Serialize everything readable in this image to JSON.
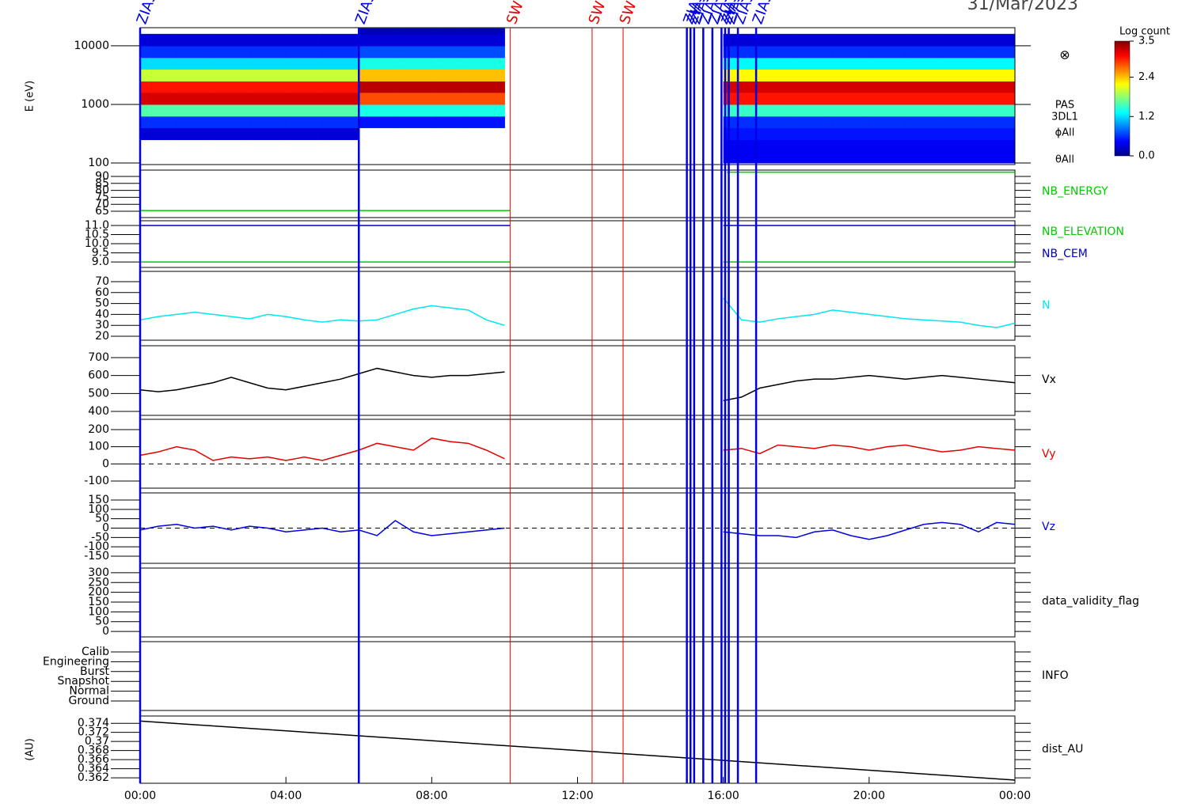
{
  "date": "31/Mar/2023",
  "events": [
    {
      "time": 0,
      "label": "ZIAS",
      "color": "#0000e0"
    },
    {
      "time": 6.0,
      "label": "ZIAS",
      "color": "#0000e0"
    },
    {
      "time": 10.15,
      "label": "SW",
      "color": "#e00000"
    },
    {
      "time": 12.4,
      "label": "SW",
      "color": "#e00000"
    },
    {
      "time": 13.25,
      "label": "SW",
      "color": "#e00000"
    },
    {
      "time": 15.0,
      "label": "ZIAS",
      "color": "#0000e0"
    },
    {
      "time": 15.1,
      "label": "ZIAS",
      "color": "#0000e0"
    },
    {
      "time": 15.2,
      "label": "ZIAS",
      "color": "#0000e0"
    },
    {
      "time": 15.45,
      "label": "ZIAS",
      "color": "#0000e0"
    },
    {
      "time": 15.7,
      "label": "ZIAS",
      "color": "#0000e0"
    },
    {
      "time": 15.95,
      "label": "ZIAS",
      "color": "#0000e0"
    },
    {
      "time": 16.05,
      "label": "ZIAS",
      "color": "#0000e0"
    },
    {
      "time": 16.15,
      "label": "ZIAS",
      "color": "#0000e0"
    },
    {
      "time": 16.4,
      "label": "ZIAS",
      "color": "#0000e0"
    },
    {
      "time": 16.9,
      "label": "ZIAS",
      "color": "#0000e0"
    }
  ],
  "chart_data": [
    {
      "type": "heatmap",
      "ylabel": "E (eV)",
      "log_y": true,
      "ylim": [
        94,
        20400
      ],
      "yticks": [
        100,
        1000,
        10000
      ],
      "xlim": [
        0,
        24
      ],
      "x_edges": [
        0,
        1,
        2,
        3,
        4,
        5,
        6,
        7,
        8,
        9,
        10,
        11,
        12,
        13,
        14,
        15,
        16,
        17,
        18,
        19,
        20,
        21,
        22,
        23,
        24
      ],
      "y_edges": [
        100,
        160,
        250,
        400,
        630,
        1000,
        1600,
        2500,
        4000,
        6300,
        10000,
        16000,
        20000
      ],
      "z": [
        [
          null,
          null,
          null,
          null,
          null,
          null,
          null,
          null,
          null,
          null,
          null,
          null,
          null,
          null,
          null,
          null,
          0.4,
          0.4,
          0.4,
          0.4,
          0.4,
          0.4,
          0.4,
          0.4
        ],
        [
          null,
          null,
          null,
          null,
          null,
          null,
          null,
          null,
          null,
          null,
          null,
          null,
          null,
          null,
          null,
          null,
          0.4,
          0.4,
          0.4,
          0.4,
          0.4,
          0.4,
          0.4,
          0.4
        ],
        [
          0.3,
          0.3,
          0.3,
          0.3,
          0.3,
          0.3,
          null,
          null,
          null,
          null,
          null,
          null,
          null,
          null,
          null,
          null,
          0.5,
          0.5,
          0.5,
          0.5,
          0.5,
          0.5,
          0.5,
          0.5
        ],
        [
          0.6,
          0.6,
          0.6,
          0.6,
          0.6,
          0.6,
          0.5,
          0.5,
          0.5,
          0.5,
          null,
          null,
          null,
          null,
          null,
          null,
          0.6,
          0.6,
          0.6,
          0.6,
          0.6,
          0.6,
          0.6,
          0.6
        ],
        [
          1.6,
          1.6,
          1.6,
          1.6,
          1.6,
          1.6,
          1.4,
          1.4,
          1.4,
          1.4,
          null,
          null,
          null,
          null,
          null,
          null,
          1.5,
          1.5,
          1.5,
          1.5,
          1.5,
          1.5,
          1.5,
          1.5
        ],
        [
          3.2,
          3.2,
          3.2,
          3.2,
          3.2,
          3.2,
          2.8,
          2.8,
          2.8,
          2.8,
          null,
          null,
          null,
          null,
          null,
          null,
          3.0,
          3.0,
          3.0,
          3.0,
          3.0,
          3.0,
          3.0,
          3.0
        ],
        [
          3.0,
          3.0,
          3.0,
          3.0,
          3.0,
          3.0,
          3.3,
          3.3,
          3.3,
          3.3,
          null,
          null,
          null,
          null,
          null,
          null,
          3.2,
          3.2,
          3.2,
          3.2,
          3.2,
          3.2,
          3.2,
          3.2
        ],
        [
          2.0,
          2.0,
          2.0,
          2.0,
          2.0,
          2.0,
          2.4,
          2.4,
          2.4,
          2.4,
          null,
          null,
          null,
          null,
          null,
          null,
          2.2,
          2.2,
          2.2,
          2.2,
          2.2,
          2.2,
          2.2,
          2.2
        ],
        [
          1.2,
          1.2,
          1.2,
          1.2,
          1.2,
          1.2,
          1.4,
          1.4,
          1.4,
          1.4,
          null,
          null,
          null,
          null,
          null,
          null,
          1.3,
          1.3,
          1.3,
          1.3,
          1.3,
          1.3,
          1.3,
          1.3
        ],
        [
          0.6,
          0.6,
          0.6,
          0.6,
          0.6,
          0.6,
          0.7,
          0.7,
          0.7,
          0.7,
          null,
          null,
          null,
          null,
          null,
          null,
          0.6,
          0.6,
          0.6,
          0.6,
          0.6,
          0.6,
          0.6,
          0.6
        ],
        [
          0.3,
          0.3,
          0.3,
          0.3,
          0.3,
          0.3,
          0.3,
          0.3,
          0.3,
          0.3,
          null,
          null,
          null,
          null,
          null,
          null,
          0.3,
          0.3,
          0.3,
          0.3,
          0.3,
          0.3,
          0.3,
          0.3
        ],
        [
          null,
          null,
          null,
          null,
          null,
          null,
          0.2,
          0.2,
          0.2,
          0.2,
          null,
          null,
          null,
          null,
          null,
          null,
          null,
          null,
          null,
          null,
          null,
          null,
          null,
          null
        ]
      ],
      "clim": [
        0,
        3.5
      ],
      "colorbar_title": "Log count",
      "cticks": [
        {
          "value": 0,
          "label": "0.0"
        },
        1.2,
        2.4,
        3.5
      ],
      "symbol": "⊗",
      "side_labels": [
        "PAS",
        "3DL1",
        "ϕAll",
        "θAll"
      ]
    },
    {
      "type": "line",
      "ylim": [
        60.5,
        94.5
      ],
      "yticks": [
        90,
        85,
        80,
        75,
        70,
        65
      ],
      "xlim": [
        0,
        24
      ],
      "x": [
        0,
        10.15,
        13,
        16.1,
        24
      ],
      "series": [
        {
          "name": "NB_ENERGY",
          "color": "#00cc00",
          "values": [
            65.5,
            65.5,
            null,
            93,
            93
          ]
        }
      ]
    },
    {
      "type": "line",
      "ylim": [
        8.7,
        11.26
      ],
      "yticks": [
        {
          "value": 11,
          "label": "11.0"
        },
        10.5,
        {
          "value": 10,
          "label": "10.0"
        },
        9.5,
        {
          "value": 9,
          "label": "9.0"
        }
      ],
      "xlim": [
        0,
        24
      ],
      "x": [
        0,
        10.15,
        13,
        16.0,
        24
      ],
      "series": [
        {
          "name": "NB_ELEVATION",
          "color": "#00cc00",
          "values": [
            9,
            9,
            null,
            9,
            9
          ]
        },
        {
          "name": "NB_CEM",
          "color": "#0000c0",
          "values": [
            11,
            11,
            null,
            11,
            11
          ]
        }
      ]
    },
    {
      "type": "line",
      "ylim": [
        16.4,
        79.4
      ],
      "yticks": [
        20,
        30,
        40,
        50,
        60,
        70
      ],
      "xlim": [
        0,
        24
      ],
      "x": [
        0,
        0.5,
        1,
        1.5,
        2,
        2.5,
        3,
        3.5,
        4,
        4.5,
        5,
        5.5,
        6,
        6.5,
        7,
        7.5,
        8,
        8.5,
        9,
        9.5,
        10,
        13,
        16,
        16.5,
        17,
        17.5,
        18,
        18.5,
        19,
        19.5,
        20,
        20.5,
        21,
        21.5,
        22,
        22.5,
        23,
        23.5,
        24
      ],
      "series": [
        {
          "name": "N",
          "color": "#00e5ee",
          "values": [
            35,
            38,
            40,
            42,
            40,
            38,
            36,
            40,
            38,
            35,
            33,
            35,
            34,
            35,
            40,
            45,
            48,
            46,
            44,
            35,
            30,
            null,
            55,
            35,
            33,
            36,
            38,
            40,
            44,
            42,
            40,
            38,
            36,
            35,
            34,
            33,
            30,
            28,
            32
          ]
        }
      ]
    },
    {
      "type": "line",
      "ylim": [
        378,
        766
      ],
      "yticks": [
        400,
        500,
        600,
        700
      ],
      "xlim": [
        0,
        24
      ],
      "x": [
        0,
        0.5,
        1,
        1.5,
        2,
        2.5,
        3,
        3.5,
        4,
        4.5,
        5,
        5.5,
        6,
        6.5,
        7,
        7.5,
        8,
        8.5,
        9,
        9.5,
        10,
        13,
        16,
        16.5,
        17,
        17.5,
        18,
        18.5,
        19,
        19.5,
        20,
        20.5,
        21,
        21.5,
        22,
        22.5,
        23,
        23.5,
        24
      ],
      "series": [
        {
          "name": "Vx",
          "color": "#000000",
          "values": [
            520,
            510,
            520,
            540,
            560,
            590,
            560,
            530,
            520,
            540,
            560,
            580,
            610,
            640,
            620,
            600,
            590,
            600,
            600,
            610,
            620,
            null,
            460,
            480,
            530,
            550,
            570,
            580,
            580,
            590,
            600,
            590,
            580,
            590,
            600,
            590,
            580,
            570,
            560
          ]
        }
      ]
    },
    {
      "type": "line",
      "ylim": [
        -141.5,
        260
      ],
      "yticks": [
        -100,
        0,
        100,
        200
      ],
      "xlim": [
        0,
        24
      ],
      "zero_line": true,
      "x": [
        0,
        0.5,
        1,
        1.5,
        2,
        2.5,
        3,
        3.5,
        4,
        4.5,
        5,
        5.5,
        6,
        6.5,
        7,
        7.5,
        8,
        8.5,
        9,
        9.5,
        10,
        13,
        16,
        16.5,
        17,
        17.5,
        18,
        18.5,
        19,
        19.5,
        20,
        20.5,
        21,
        21.5,
        22,
        22.5,
        23,
        23.5,
        24
      ],
      "series": [
        {
          "name": "Vy",
          "color": "#e00000",
          "values": [
            50,
            70,
            100,
            80,
            20,
            40,
            30,
            40,
            20,
            40,
            20,
            50,
            80,
            120,
            100,
            80,
            150,
            130,
            120,
            80,
            30,
            null,
            80,
            90,
            60,
            110,
            100,
            90,
            110,
            100,
            80,
            100,
            110,
            90,
            70,
            80,
            100,
            90,
            80
          ]
        }
      ]
    },
    {
      "type": "line",
      "ylim": [
        -188,
        188
      ],
      "yticks": [
        -150,
        -100,
        -50,
        0,
        50,
        100,
        150
      ],
      "xlim": [
        0,
        24
      ],
      "zero_line": true,
      "x": [
        0,
        0.5,
        1,
        1.5,
        2,
        2.5,
        3,
        3.5,
        4,
        4.5,
        5,
        5.5,
        6,
        6.5,
        7,
        7.5,
        8,
        8.5,
        9,
        9.5,
        10,
        13,
        16,
        16.5,
        17,
        17.5,
        18,
        18.5,
        19,
        19.5,
        20,
        20.5,
        21,
        21.5,
        22,
        22.5,
        23,
        23.5,
        24
      ],
      "series": [
        {
          "name": "Vz",
          "color": "#0000e0",
          "values": [
            -10,
            10,
            20,
            0,
            10,
            -10,
            10,
            0,
            -20,
            -10,
            0,
            -20,
            -10,
            -40,
            40,
            -20,
            -40,
            -30,
            -20,
            -10,
            0,
            null,
            -20,
            -30,
            -40,
            -40,
            -50,
            -20,
            -10,
            -40,
            -60,
            -40,
            -10,
            20,
            30,
            20,
            -20,
            30,
            20
          ]
        }
      ]
    },
    {
      "type": "line",
      "label": "data_validity_flag",
      "ylim": [
        -28,
        324
      ],
      "yticks": [
        0,
        50,
        100,
        150,
        200,
        250,
        300
      ],
      "xlim": [
        0,
        24
      ]
    },
    {
      "type": "category",
      "label": "INFO",
      "y_categories": [
        "Calib",
        "Engineering",
        "Burst",
        "Snapshot",
        "Normal",
        "Ground"
      ],
      "xlim": [
        0,
        24
      ]
    },
    {
      "type": "line",
      "ylabel": "(AU)",
      "ylim": [
        0.3608,
        0.3756
      ],
      "yticks": [
        0.362,
        0.364,
        0.366,
        0.368,
        0.37,
        0.372,
        0.374
      ],
      "xlim": [
        0,
        24
      ],
      "x": [
        0,
        24
      ],
      "series": [
        {
          "name": "dist_AU",
          "color": "#000000",
          "values": [
            0.3745,
            0.3615
          ]
        }
      ],
      "xticks": [
        {
          "value": 0,
          "label": "00:00"
        },
        {
          "value": 4,
          "label": "04:00"
        },
        {
          "value": 8,
          "label": "08:00"
        },
        {
          "value": 12,
          "label": "12:00"
        },
        {
          "value": 16,
          "label": "16:00"
        },
        {
          "value": 20,
          "label": "20:00"
        },
        {
          "value": 24,
          "label": "00:00"
        }
      ]
    }
  ]
}
